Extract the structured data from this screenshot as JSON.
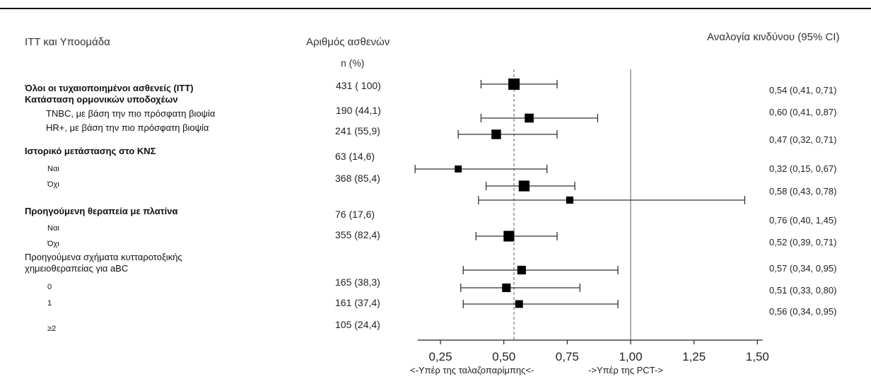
{
  "headers": {
    "group": "ITT και Υποομάδα",
    "patients": "Αριθμός ασθενών",
    "patients_sub": "n (%)",
    "hazard": "Αναλογία κινδύνου (95% CI)"
  },
  "labels": [
    "Όλοι οι τυχαιοποιημένοι ασθενείς (ITT)",
    "Κατάσταση ορμονικών υποδοχέων",
    "TNBC, με βάση την πιο πρόσφατη βιοψία",
    "HR+, με βάση την πιο πρόσφατη βιοψία",
    "Ιστορικό μετάστασης στο ΚΝΣ",
    "Ναι",
    "Όχι",
    "Προηγούμενη θεραπεία με πλατίνα",
    "Ναι",
    "Όχι",
    "Προηγούμενα σχήματα κυτταροτοξικής",
    "χημειοθεραπείας για aBC",
    "0",
    "1",
    "≥2"
  ],
  "patient_counts": [
    "431 ( 100)",
    "190 (44,1)",
    "241 (55,9)",
    "63 (14,6)",
    "368 (85,4)",
    "76 (17,6)",
    "355 (82,4)",
    "165 (38,3)",
    "161 (37,4)",
    "105 (24,4)"
  ],
  "hazard_texts": [
    "0,54 (0,41, 0,71)",
    "0,60 (0,41, 0,87)",
    "0,47 (0,32, 0,71)",
    "0,32 (0,15, 0,67)",
    "0,58 (0,43, 0,78)",
    "0,76 (0,40, 1,45)",
    "0,52 (0,39, 0,71)",
    "0,57 (0,34, 0,95)",
    "0,51 (0,33, 0,80)",
    "0,56 (0,34, 0,95)"
  ],
  "direction": {
    "left": "<-Υπέρ της ταλαζοπαρίμπης<-",
    "right": "->Υπέρ της PCT->"
  },
  "chart_data": {
    "type": "forest",
    "xlim": [
      0.16,
      1.52
    ],
    "xticks": [
      0.25,
      0.5,
      0.75,
      1.0,
      1.25,
      1.5
    ],
    "xtick_labels": [
      "0,25",
      "0,50",
      "0,75",
      "1,00",
      "1,25",
      "1,50"
    ],
    "reference_line": 1.0,
    "overall_line": 0.54,
    "points": [
      {
        "hr": 0.54,
        "lo": 0.41,
        "hi": 0.71,
        "weight": 431
      },
      {
        "hr": 0.6,
        "lo": 0.41,
        "hi": 0.87,
        "weight": 190
      },
      {
        "hr": 0.47,
        "lo": 0.32,
        "hi": 0.71,
        "weight": 241
      },
      {
        "hr": 0.32,
        "lo": 0.15,
        "hi": 0.67,
        "weight": 63
      },
      {
        "hr": 0.58,
        "lo": 0.43,
        "hi": 0.78,
        "weight": 368
      },
      {
        "hr": 0.76,
        "lo": 0.4,
        "hi": 1.45,
        "weight": 76
      },
      {
        "hr": 0.52,
        "lo": 0.39,
        "hi": 0.71,
        "weight": 355
      },
      {
        "hr": 0.57,
        "lo": 0.34,
        "hi": 0.95,
        "weight": 165
      },
      {
        "hr": 0.51,
        "lo": 0.33,
        "hi": 0.8,
        "weight": 161
      },
      {
        "hr": 0.56,
        "lo": 0.34,
        "hi": 0.95,
        "weight": 105
      }
    ],
    "colors": {
      "marker": "#000000",
      "ci": "#333333",
      "reference": "#9a9a9a",
      "overall": "#777777"
    }
  }
}
